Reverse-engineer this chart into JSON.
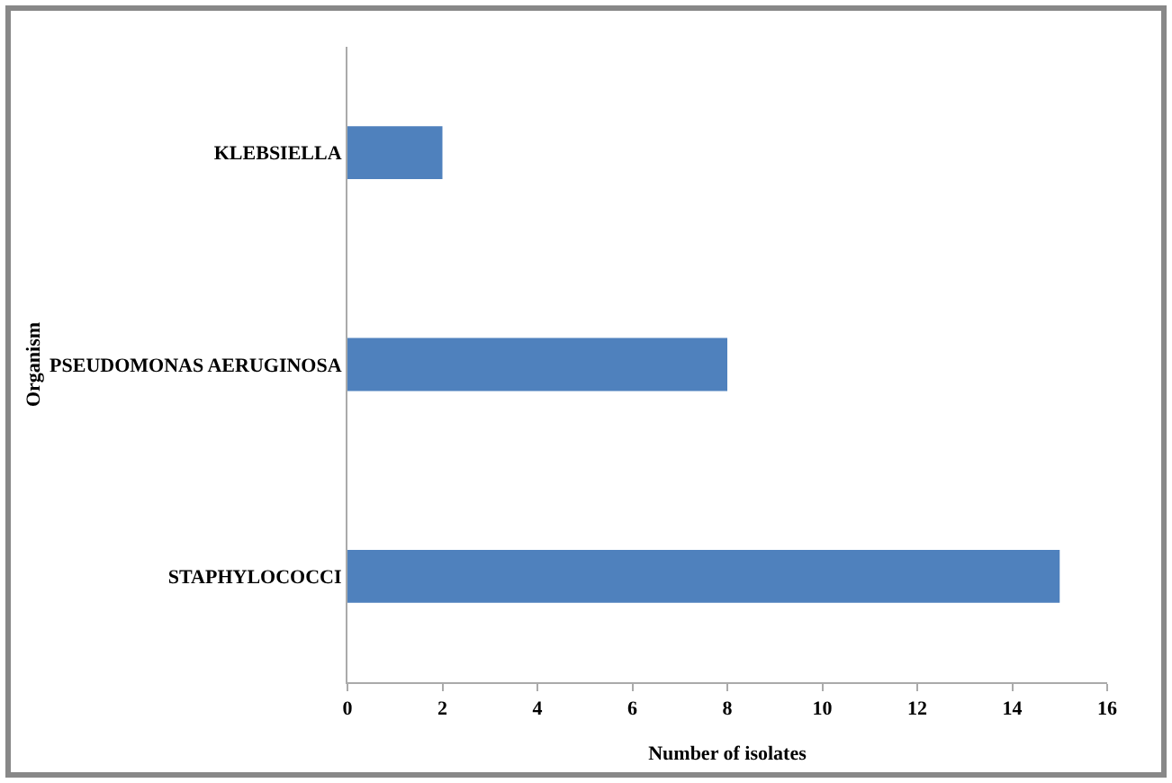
{
  "chart_data": {
    "type": "bar",
    "orientation": "horizontal",
    "xlabel": "Number of isolates",
    "ylabel": "Organism",
    "categories": [
      "KLEBSIELLA",
      "PSEUDOMONAS AERUGINOSA",
      "STAPHYLOCOCCI"
    ],
    "values": [
      2,
      8,
      15
    ],
    "color": "#4f81bd",
    "xlim": [
      0,
      16
    ],
    "xticks": [
      0,
      2,
      4,
      6,
      8,
      10,
      12,
      14,
      16
    ],
    "grid": false
  }
}
